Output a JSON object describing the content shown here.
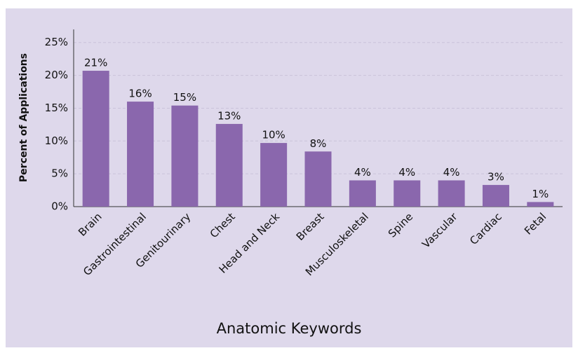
{
  "chart_data": {
    "type": "bar",
    "x_label": "Anatomic Keywords",
    "y_label": "Percent of Applications",
    "categories": [
      "Brain",
      "Gastrointestinal",
      "Genitourinary",
      "Chest",
      "Head and Neck",
      "Breast",
      "Musculoskeletal",
      "Spine",
      "Vascular",
      "Cardiac",
      "Fetal"
    ],
    "values": [
      20.7,
      16.0,
      15.4,
      12.6,
      9.7,
      8.4,
      4.0,
      4.0,
      4.0,
      3.3,
      0.7
    ],
    "value_labels": [
      "21%",
      "16%",
      "15%",
      "13%",
      "10%",
      "8%",
      "4%",
      "4%",
      "4%",
      "3%",
      "1%"
    ],
    "color": "#8a67ad",
    "ylim": [
      0,
      27
    ],
    "yticks": [
      {
        "value": 0,
        "label": "0%"
      },
      {
        "value": 5,
        "label": "5%"
      },
      {
        "value": 10,
        "label": "10%"
      },
      {
        "value": 15,
        "label": "15%"
      },
      {
        "value": 20,
        "label": "20%"
      },
      {
        "value": 25,
        "label": "25%"
      }
    ],
    "grid": true
  }
}
